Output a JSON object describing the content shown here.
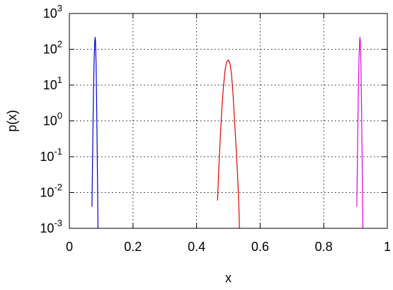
{
  "chart_data": {
    "type": "line",
    "title": "",
    "xlabel": "x",
    "ylabel": "p(x)",
    "xlim": [
      0,
      1
    ],
    "ylim": [
      0.001,
      1000
    ],
    "yscale": "log",
    "grid": true,
    "legend": "none",
    "x_ticks": [
      {
        "value": 0,
        "label": "0"
      },
      {
        "value": 0.2,
        "label": "0.2"
      },
      {
        "value": 0.4,
        "label": "0.4"
      },
      {
        "value": 0.6,
        "label": "0.6"
      },
      {
        "value": 0.8,
        "label": "0.8"
      },
      {
        "value": 1,
        "label": "1"
      }
    ],
    "y_ticks": [
      {
        "value": 0.001,
        "base": "10",
        "exp": "-3"
      },
      {
        "value": 0.01,
        "base": "10",
        "exp": "-2"
      },
      {
        "value": 0.1,
        "base": "10",
        "exp": "-1"
      },
      {
        "value": 1,
        "base": "10",
        "exp": "0"
      },
      {
        "value": 10,
        "base": "10",
        "exp": "1"
      },
      {
        "value": 100,
        "base": "10",
        "exp": "2"
      },
      {
        "value": 1000,
        "base": "10",
        "exp": "3"
      }
    ],
    "series": [
      {
        "color": "#0000cc",
        "x": [
          0.071,
          0.072,
          0.074,
          0.076,
          0.078,
          0.08,
          0.081,
          0.082,
          0.084,
          0.086,
          0.088,
          0.09
        ],
        "y": [
          0.004,
          0.02,
          0.5,
          8,
          60,
          170,
          220,
          170,
          40,
          2,
          0.05,
          0.001
        ]
      },
      {
        "color": "#dd0000",
        "x": [
          0.466,
          0.47,
          0.475,
          0.48,
          0.485,
          0.49,
          0.495,
          0.5,
          0.505,
          0.51,
          0.515,
          0.52,
          0.525,
          0.53,
          0.533,
          0.535
        ],
        "y": [
          0.006,
          0.05,
          0.4,
          2.5,
          10,
          28,
          45,
          50,
          40,
          20,
          5,
          0.8,
          0.15,
          0.02,
          0.004,
          0.001
        ]
      },
      {
        "color": "#dd00dd",
        "x": [
          0.904,
          0.905,
          0.907,
          0.909,
          0.911,
          0.913,
          0.914,
          0.915,
          0.917,
          0.919,
          0.921,
          0.923
        ],
        "y": [
          0.004,
          0.02,
          0.5,
          8,
          60,
          170,
          220,
          170,
          40,
          2,
          0.05,
          0.001
        ]
      }
    ]
  }
}
